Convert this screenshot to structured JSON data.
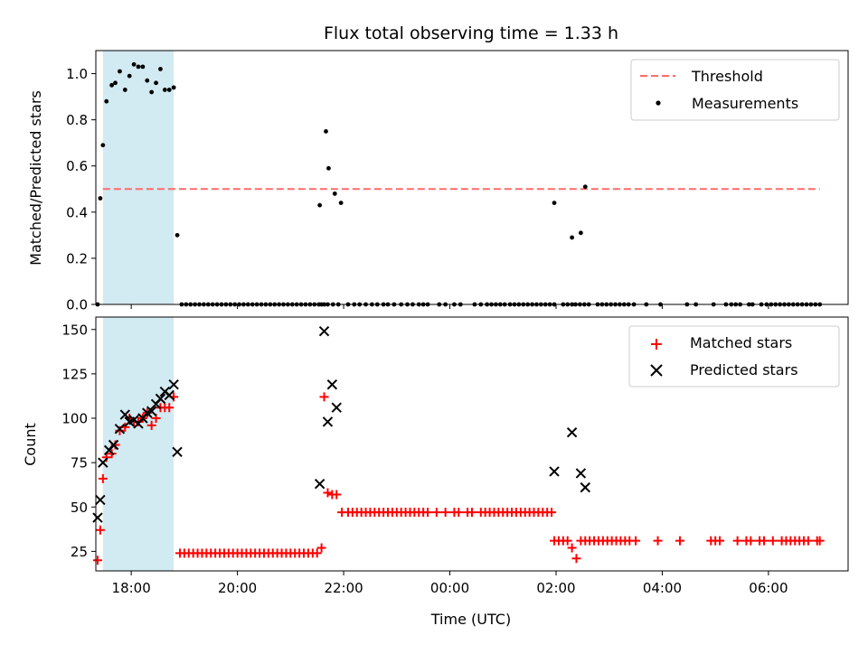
{
  "figure": {
    "title": "Flux total observing time = 1.33 h",
    "xlabel": "Time (UTC)",
    "x_tick_labels": [
      "18:00",
      "20:00",
      "22:00",
      "00:00",
      "02:00",
      "04:00",
      "06:00"
    ]
  },
  "colors": {
    "threshold": "#ff6b6b",
    "measurement": "#000000",
    "matched": "#ff0000",
    "predicted": "#000000",
    "highlight": "#add8e6"
  },
  "chart_data": [
    {
      "type": "scatter",
      "panel": "top",
      "xlabel": "",
      "ylabel": "Matched/Predicted stars",
      "ylim": [
        0,
        1.1
      ],
      "yticks": [
        0.0,
        0.2,
        0.4,
        0.6,
        0.8,
        1.0
      ],
      "ytick_labels": [
        "0.0",
        "0.2",
        "0.4",
        "0.6",
        "0.8",
        "1.0"
      ],
      "xlim_hours_note": "17:20 to 07:30 UTC",
      "legend": "top-right",
      "highlight_span": [
        "17:28",
        "18:48"
      ],
      "threshold": {
        "name": "Threshold",
        "value": 0.5,
        "x_start": "17:28",
        "x_end": "06:58"
      },
      "series": [
        {
          "name": "Measurements",
          "x": [
            "17:22",
            "17:25",
            "17:28",
            "17:32",
            "17:38",
            "17:42",
            "17:47",
            "17:53",
            "17:58",
            "18:03",
            "18:08",
            "18:13",
            "18:18",
            "18:23",
            "18:28",
            "18:33",
            "18:38",
            "18:43",
            "18:48",
            "18:52",
            "18:57",
            "19:02",
            "19:07",
            "19:12",
            "19:17",
            "19:22",
            "19:27",
            "19:32",
            "19:37",
            "19:42",
            "19:47",
            "19:52",
            "19:57",
            "20:02",
            "20:07",
            "20:12",
            "20:17",
            "20:22",
            "20:27",
            "20:32",
            "20:37",
            "20:42",
            "20:47",
            "20:52",
            "20:57",
            "21:02",
            "21:07",
            "21:12",
            "21:17",
            "21:22",
            "21:27",
            "21:32",
            "21:35",
            "21:38",
            "21:42",
            "21:48",
            "21:54",
            "22:05",
            "22:12",
            "22:18",
            "22:25",
            "22:32",
            "22:38",
            "22:45",
            "22:50",
            "22:57",
            "23:05",
            "23:12",
            "23:18",
            "23:25",
            "23:30",
            "23:35",
            "23:48",
            "23:55",
            "00:05",
            "00:12",
            "00:28",
            "00:35",
            "00:42",
            "00:47",
            "00:52",
            "00:57",
            "01:02",
            "01:08",
            "01:13",
            "01:18",
            "01:23",
            "01:28",
            "01:33",
            "01:38",
            "01:43",
            "01:48",
            "01:53",
            "01:58",
            "02:08",
            "02:13",
            "02:18",
            "02:22",
            "02:27",
            "02:32",
            "02:37",
            "02:47",
            "02:52",
            "02:57",
            "03:02",
            "03:07",
            "03:12",
            "03:17",
            "03:22",
            "03:28",
            "03:42",
            "03:58",
            "04:28",
            "04:38",
            "04:58",
            "05:12",
            "05:18",
            "05:23",
            "05:28",
            "05:38",
            "05:42",
            "05:52",
            "05:58",
            "06:03",
            "06:08",
            "06:13",
            "06:18",
            "06:23",
            "06:28",
            "06:33",
            "06:38",
            "06:43",
            "06:48",
            "06:53",
            "06:58",
            "21:33",
            "21:40",
            "21:43",
            "21:50",
            "21:57",
            "01:58",
            "02:18",
            "02:28",
            "02:33"
          ],
          "y": [
            0.0,
            0.46,
            0.69,
            0.88,
            0.95,
            0.96,
            1.01,
            0.93,
            0.99,
            1.04,
            1.03,
            1.03,
            0.97,
            0.92,
            0.96,
            1.02,
            0.93,
            0.93,
            0.94,
            0.3,
            0.0,
            0.0,
            0.0,
            0.0,
            0.0,
            0.0,
            0.0,
            0.0,
            0.0,
            0.0,
            0.0,
            0.0,
            0.0,
            0.0,
            0.0,
            0.0,
            0.0,
            0.0,
            0.0,
            0.0,
            0.0,
            0.0,
            0.0,
            0.0,
            0.0,
            0.0,
            0.0,
            0.0,
            0.0,
            0.0,
            0.0,
            0.0,
            0.0,
            0.0,
            0.0,
            0.0,
            0.0,
            0.0,
            0.0,
            0.0,
            0.0,
            0.0,
            0.0,
            0.0,
            0.0,
            0.0,
            0.0,
            0.0,
            0.0,
            0.0,
            0.0,
            0.0,
            0.0,
            0.0,
            0.0,
            0.0,
            0.0,
            0.0,
            0.0,
            0.0,
            0.0,
            0.0,
            0.0,
            0.0,
            0.0,
            0.0,
            0.0,
            0.0,
            0.0,
            0.0,
            0.0,
            0.0,
            0.0,
            0.0,
            0.0,
            0.0,
            0.0,
            0.0,
            0.0,
            0.0,
            0.0,
            0.0,
            0.0,
            0.0,
            0.0,
            0.0,
            0.0,
            0.0,
            0.0,
            0.0,
            0.0,
            0.0,
            0.0,
            0.0,
            0.0,
            0.0,
            0.0,
            0.0,
            0.0,
            0.0,
            0.0,
            0.0,
            0.0,
            0.0,
            0.0,
            0.0,
            0.0,
            0.0,
            0.0,
            0.0,
            0.0,
            0.0,
            0.0,
            0.0,
            0.0,
            0.43,
            0.75,
            0.59,
            0.48,
            0.44,
            0.44,
            0.29,
            0.31,
            0.51
          ]
        }
      ]
    },
    {
      "type": "scatter",
      "panel": "bottom",
      "xlabel": "Time (UTC)",
      "ylabel": "Count",
      "ylim": [
        14,
        157
      ],
      "yticks": [
        25,
        50,
        75,
        100,
        125,
        150
      ],
      "ytick_labels": [
        "25",
        "50",
        "75",
        "100",
        "125",
        "150"
      ],
      "legend": "top-right",
      "highlight_span": [
        "17:28",
        "18:48"
      ],
      "series": [
        {
          "name": "Matched stars",
          "x": [
            "17:22",
            "17:25",
            "17:28",
            "17:32",
            "17:38",
            "17:42",
            "17:47",
            "17:53",
            "17:58",
            "18:03",
            "18:08",
            "18:13",
            "18:18",
            "18:23",
            "18:28",
            "18:33",
            "18:38",
            "18:43",
            "18:48",
            "18:55",
            "19:00",
            "19:05",
            "19:10",
            "19:15",
            "19:20",
            "19:25",
            "19:30",
            "19:35",
            "19:40",
            "19:45",
            "19:50",
            "19:55",
            "20:00",
            "20:05",
            "20:10",
            "20:15",
            "20:20",
            "20:25",
            "20:30",
            "20:35",
            "20:40",
            "20:45",
            "20:50",
            "20:55",
            "21:00",
            "21:05",
            "21:10",
            "21:15",
            "21:20",
            "21:25",
            "21:30",
            "21:35",
            "21:38",
            "21:42",
            "21:47",
            "21:52",
            "21:58",
            "22:05",
            "22:10",
            "22:15",
            "22:20",
            "22:25",
            "22:30",
            "22:35",
            "22:40",
            "22:45",
            "22:50",
            "22:55",
            "23:00",
            "23:05",
            "23:10",
            "23:15",
            "23:20",
            "23:25",
            "23:30",
            "23:35",
            "23:45",
            "23:55",
            "00:05",
            "00:10",
            "00:20",
            "00:25",
            "00:35",
            "00:40",
            "00:45",
            "00:50",
            "00:55",
            "01:00",
            "01:05",
            "01:10",
            "01:15",
            "01:20",
            "01:25",
            "01:30",
            "01:35",
            "01:40",
            "01:45",
            "01:50",
            "01:55",
            "01:58",
            "02:03",
            "02:08",
            "02:13",
            "02:18",
            "02:23",
            "02:28",
            "02:33",
            "02:38",
            "02:43",
            "02:48",
            "02:53",
            "02:58",
            "03:03",
            "03:08",
            "03:13",
            "03:18",
            "03:23",
            "03:30",
            "03:55",
            "04:20",
            "04:55",
            "05:00",
            "05:05",
            "05:25",
            "05:35",
            "05:40",
            "05:50",
            "05:55",
            "06:05",
            "06:15",
            "06:20",
            "06:25",
            "06:30",
            "06:35",
            "06:40",
            "06:45",
            "06:55",
            "06:58"
          ],
          "y": [
            20,
            37,
            66,
            78,
            80,
            85,
            93,
            95,
            100,
            98,
            98,
            100,
            103,
            96,
            100,
            106,
            106,
            106,
            112,
            24,
            24,
            24,
            24,
            24,
            24,
            24,
            24,
            24,
            24,
            24,
            24,
            24,
            24,
            24,
            24,
            24,
            24,
            24,
            24,
            24,
            24,
            24,
            24,
            24,
            24,
            24,
            24,
            24,
            24,
            24,
            24,
            27,
            112,
            58,
            57,
            57,
            47,
            47,
            47,
            47,
            47,
            47,
            47,
            47,
            47,
            47,
            47,
            47,
            47,
            47,
            47,
            47,
            47,
            47,
            47,
            47,
            47,
            47,
            47,
            47,
            47,
            47,
            47,
            47,
            47,
            47,
            47,
            47,
            47,
            47,
            47,
            47,
            47,
            47,
            47,
            47,
            47,
            47,
            47,
            31,
            31,
            31,
            31,
            27,
            21,
            31,
            31,
            31,
            31,
            31,
            31,
            31,
            31,
            31,
            31,
            31,
            31,
            31,
            31,
            31,
            31,
            31,
            31,
            31,
            31,
            31,
            31,
            31,
            31,
            31,
            31,
            31,
            31,
            31,
            31,
            31,
            31,
            31
          ]
        },
        {
          "name": "Predicted stars",
          "x": [
            "17:22",
            "17:25",
            "17:28",
            "17:35",
            "17:40",
            "17:47",
            "17:53",
            "17:58",
            "18:03",
            "18:08",
            "18:13",
            "18:18",
            "18:23",
            "18:28",
            "18:33",
            "18:38",
            "18:43",
            "18:48",
            "18:52",
            "21:33",
            "21:38",
            "21:42",
            "21:47",
            "21:52",
            "01:58",
            "02:18",
            "02:28",
            "02:33"
          ],
          "y": [
            44,
            54,
            75,
            82,
            85,
            94,
            102,
            98,
            99,
            97,
            100,
            103,
            104,
            108,
            111,
            115,
            113,
            119,
            81,
            63,
            149,
            98,
            119,
            106,
            70,
            92,
            69,
            61
          ]
        }
      ]
    }
  ]
}
